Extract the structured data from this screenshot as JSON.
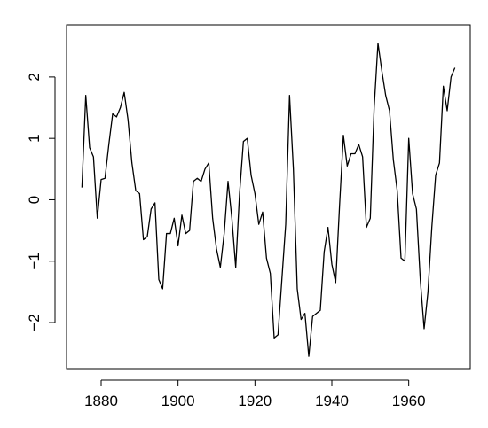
{
  "chart_data": {
    "type": "line",
    "title": "",
    "xlabel": "",
    "ylabel": "",
    "xlim": [
      1871,
      1976
    ],
    "ylim": [
      -2.75,
      2.85
    ],
    "xticks": [
      1880,
      1900,
      1920,
      1940,
      1960
    ],
    "yticks": [
      -2,
      -1,
      0,
      1,
      2
    ],
    "xtick_labels": [
      "1880",
      "1900",
      "1920",
      "1940",
      "1960"
    ],
    "ytick_labels": [
      "−2",
      "−1",
      "0",
      "1",
      "2"
    ],
    "grid": false,
    "legend": "none",
    "line_color": "#000000",
    "series": [
      {
        "x": [
          1875,
          1876,
          1877,
          1878,
          1879,
          1880,
          1881,
          1882,
          1883,
          1884,
          1885,
          1886,
          1887,
          1888,
          1889,
          1890,
          1891,
          1892,
          1893,
          1894,
          1895,
          1896,
          1897,
          1898,
          1899,
          1900,
          1901,
          1902,
          1903,
          1904,
          1905,
          1906,
          1907,
          1908,
          1909,
          1910,
          1911,
          1912,
          1913,
          1914,
          1915,
          1916,
          1917,
          1918,
          1919,
          1920,
          1921,
          1922,
          1923,
          1924,
          1925,
          1926,
          1927,
          1928,
          1929,
          1930,
          1931,
          1932,
          1933,
          1934,
          1935,
          1936,
          1937,
          1938,
          1939,
          1940,
          1941,
          1942,
          1943,
          1944,
          1945,
          1946,
          1947,
          1948,
          1949,
          1950,
          1951,
          1952,
          1953,
          1954,
          1955,
          1956,
          1957,
          1958,
          1959,
          1960,
          1961,
          1962,
          1963,
          1964,
          1965,
          1966,
          1967,
          1968,
          1969,
          1970,
          1971,
          1972
        ],
        "values": [
          0.2,
          1.7,
          0.85,
          0.7,
          -0.3,
          0.33,
          0.35,
          0.9,
          1.4,
          1.35,
          1.5,
          1.75,
          1.3,
          0.6,
          0.15,
          0.1,
          -0.65,
          -0.6,
          -0.15,
          -0.05,
          -1.3,
          -1.45,
          -0.55,
          -0.55,
          -0.3,
          -0.75,
          -0.25,
          -0.55,
          -0.5,
          0.3,
          0.35,
          0.3,
          0.5,
          0.6,
          -0.3,
          -0.8,
          -1.1,
          -0.55,
          0.3,
          -0.3,
          -1.1,
          0.1,
          0.95,
          1.0,
          0.4,
          0.1,
          -0.4,
          -0.2,
          -0.95,
          -1.2,
          -2.25,
          -2.2,
          -1.3,
          -0.4,
          1.7,
          0.5,
          -1.45,
          -1.95,
          -1.85,
          -2.55,
          -1.9,
          -1.85,
          -1.8,
          -0.85,
          -0.45,
          -1.05,
          -1.35,
          -0.1,
          1.05,
          0.55,
          0.75,
          0.75,
          0.9,
          0.7,
          -0.45,
          -0.3,
          1.5,
          2.55,
          2.1,
          1.7,
          1.45,
          0.65,
          0.15,
          -0.95,
          -1.0,
          1.0,
          0.1,
          -0.15,
          -1.3,
          -2.1,
          -1.5,
          -0.45,
          0.4,
          0.6,
          1.85,
          1.45,
          2.0,
          2.15
        ]
      }
    ]
  }
}
